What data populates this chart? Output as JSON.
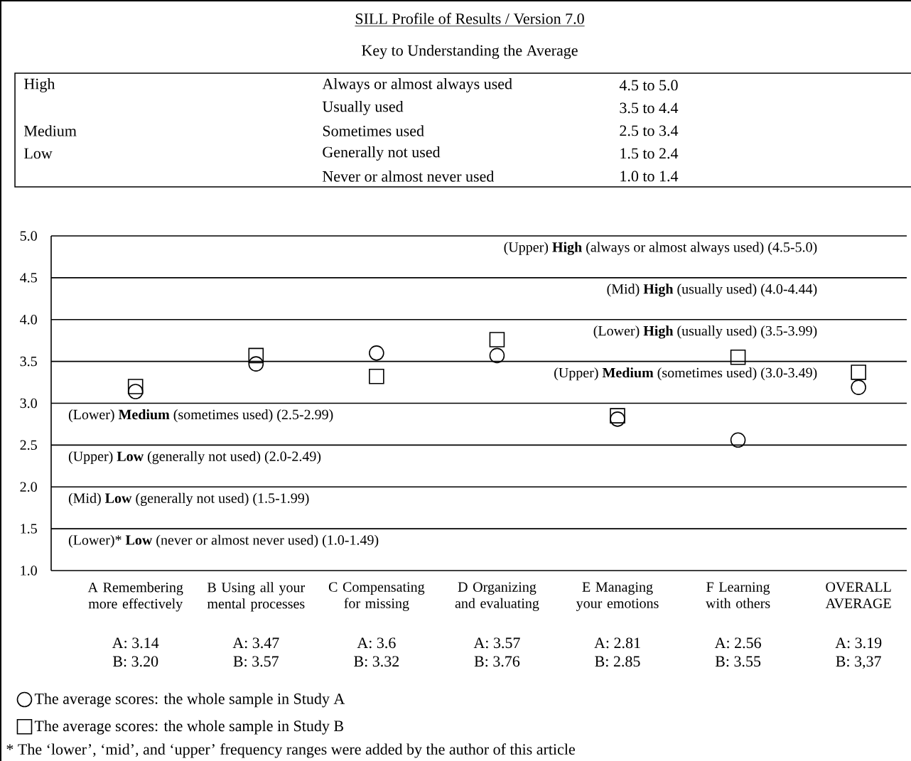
{
  "chart_data": {
    "type": "scatter",
    "title": "SILL Profile of Results / Version 7.0",
    "subtitle": "Key to Understanding the Average",
    "categories": [
      "A Remembering more effectively",
      "B Using all your mental processes",
      "C Compensating for missing",
      "D Organizing and evaluating",
      "E Managing your emotions",
      "F Learning with others",
      "OVERALL AVERAGE"
    ],
    "series": [
      {
        "name": "The average scores: the whole sample in Study A",
        "color": "#000000",
        "marker": "circle",
        "values": [
          3.14,
          3.47,
          3.6,
          3.57,
          2.81,
          2.56,
          3.19
        ],
        "value_labels": [
          "A: 3.14",
          "A: 3.47",
          "A: 3.6",
          "A: 3.57",
          "A: 2.81",
          "A: 2.56",
          "A: 3.19"
        ]
      },
      {
        "name": "The average scores: the whole sample in Study B",
        "color": "#000000",
        "marker": "square",
        "values": [
          3.2,
          3.57,
          3.32,
          3.76,
          2.85,
          3.55,
          3.37
        ],
        "value_labels": [
          "B: 3.20",
          "B: 3.57",
          "B: 3.32",
          "B: 3.76",
          "B: 2.85",
          "B: 3.55",
          "B: 3,37"
        ]
      }
    ],
    "ylim": [
      1.0,
      5.0
    ],
    "yticks": [
      {
        "value": 1.0,
        "label": "1.0"
      },
      {
        "value": 1.5,
        "label": "1.5"
      },
      {
        "value": 2.0,
        "label": "2.0"
      },
      {
        "value": 2.5,
        "label": "2.5"
      },
      {
        "value": 3.0,
        "label": "3.0"
      },
      {
        "value": 3.5,
        "label": "3.5"
      },
      {
        "value": 4.0,
        "label": "4.0"
      },
      {
        "value": 4.5,
        "label": "4.5"
      },
      {
        "value": 5.0,
        "label": "5.0"
      }
    ],
    "ref_lines": [
      {
        "axis": "y",
        "value": 1.5
      },
      {
        "axis": "y",
        "value": 2.0
      },
      {
        "axis": "y",
        "value": 2.5
      },
      {
        "axis": "y",
        "value": 3.0
      },
      {
        "axis": "y",
        "value": 3.5
      },
      {
        "axis": "y",
        "value": 4.0
      },
      {
        "axis": "y",
        "value": 4.5
      }
    ],
    "legend": "bottom",
    "annotations": [
      "High",
      "Always or almost always used",
      "4.5 to 5.0",
      "Usually used",
      "3.5 to 4.4",
      "Medium",
      "Sometimes used",
      "2.5 to 3.4",
      "Low",
      "Generally not used",
      "1.5 to 2.4",
      "Never or almost never used",
      "1.0 to 1.4",
      "(Lower)* **Low** (never or almost never used) (1.0-1.49)",
      "(Mid) **Low** (generally not used) (1.5-1.99)",
      "(Upper) **Low** (generally not used) (2.0-2.49)",
      "(Lower) **Medium** (sometimes used) (2.5-2.99)",
      "(Upper) **Medium** (sometimes used) (3.0-3.49)",
      "(Lower) **High** (usually used) (3.5-3.99)",
      "(Mid) **High** (usually used) (4.0-4.44)",
      "(Upper) **High** (always or almost always used) (4.5-5.0)",
      "* The ‘lower’, ‘mid’, and ‘upper’ frequency ranges were added by the author of this article"
    ]
  }
}
